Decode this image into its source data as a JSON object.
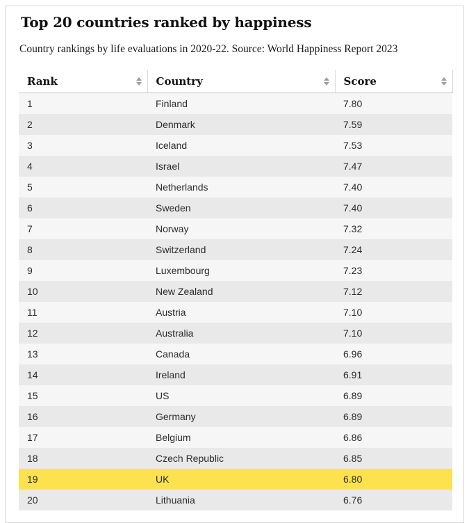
{
  "header": {
    "title": "Top 20 countries ranked by happiness",
    "subtitle": "Country rankings by life evaluations in 2020-22. Source: World Happiness Report 2023"
  },
  "table": {
    "columns": [
      {
        "label": "Rank",
        "sort_icon": "sort-arrows-icon"
      },
      {
        "label": "Country",
        "sort_icon": "sort-arrows-icon"
      },
      {
        "label": "Score",
        "sort_icon": "sort-arrows-icon"
      }
    ],
    "rows": [
      {
        "rank": "1",
        "country": "Finland",
        "score": "7.80",
        "highlight": false
      },
      {
        "rank": "2",
        "country": "Denmark",
        "score": "7.59",
        "highlight": false
      },
      {
        "rank": "3",
        "country": "Iceland",
        "score": "7.53",
        "highlight": false
      },
      {
        "rank": "4",
        "country": "Israel",
        "score": "7.47",
        "highlight": false
      },
      {
        "rank": "5",
        "country": "Netherlands",
        "score": "7.40",
        "highlight": false
      },
      {
        "rank": "6",
        "country": "Sweden",
        "score": "7.40",
        "highlight": false
      },
      {
        "rank": "7",
        "country": "Norway",
        "score": "7.32",
        "highlight": false
      },
      {
        "rank": "8",
        "country": "Switzerland",
        "score": "7.24",
        "highlight": false
      },
      {
        "rank": "9",
        "country": "Luxembourg",
        "score": "7.23",
        "highlight": false
      },
      {
        "rank": "10",
        "country": "New Zealand",
        "score": "7.12",
        "highlight": false
      },
      {
        "rank": "11",
        "country": "Austria",
        "score": "7.10",
        "highlight": false
      },
      {
        "rank": "12",
        "country": "Australia",
        "score": "7.10",
        "highlight": false
      },
      {
        "rank": "13",
        "country": "Canada",
        "score": "6.96",
        "highlight": false
      },
      {
        "rank": "14",
        "country": "Ireland",
        "score": "6.91",
        "highlight": false
      },
      {
        "rank": "15",
        "country": "US",
        "score": "6.89",
        "highlight": false
      },
      {
        "rank": "16",
        "country": "Germany",
        "score": "6.89",
        "highlight": false
      },
      {
        "rank": "17",
        "country": "Belgium",
        "score": "6.86",
        "highlight": false
      },
      {
        "rank": "18",
        "country": "Czech Republic",
        "score": "6.85",
        "highlight": false
      },
      {
        "rank": "19",
        "country": "UK",
        "score": "6.80",
        "highlight": true
      },
      {
        "rank": "20",
        "country": "Lithuania",
        "score": "6.76",
        "highlight": false
      }
    ]
  },
  "colors": {
    "highlight_row": "#fce24e",
    "row_odd": "#f6f6f6",
    "row_even": "#e9e9e9",
    "card_border": "#d9d9d9",
    "header_border": "#c7c7c7",
    "sort_icon": "#9e9e9e",
    "title_text": "#121212",
    "cell_text": "#2b2b2b"
  },
  "chart_data": {
    "type": "table",
    "title": "Top 20 countries ranked by happiness",
    "subtitle": "Country rankings by life evaluations in 2020-22. Source: World Happiness Report 2023",
    "columns": [
      "Rank",
      "Country",
      "Score"
    ],
    "categories": [
      "Finland",
      "Denmark",
      "Iceland",
      "Israel",
      "Netherlands",
      "Sweden",
      "Norway",
      "Switzerland",
      "Luxembourg",
      "New Zealand",
      "Austria",
      "Australia",
      "Canada",
      "Ireland",
      "US",
      "Germany",
      "Belgium",
      "Czech Republic",
      "UK",
      "Lithuania"
    ],
    "values": [
      7.8,
      7.59,
      7.53,
      7.47,
      7.4,
      7.4,
      7.32,
      7.24,
      7.23,
      7.12,
      7.1,
      7.1,
      6.96,
      6.91,
      6.89,
      6.89,
      6.86,
      6.85,
      6.8,
      6.76
    ],
    "highlighted_category": "UK",
    "sortable_columns": true,
    "zebra_striping": true
  }
}
